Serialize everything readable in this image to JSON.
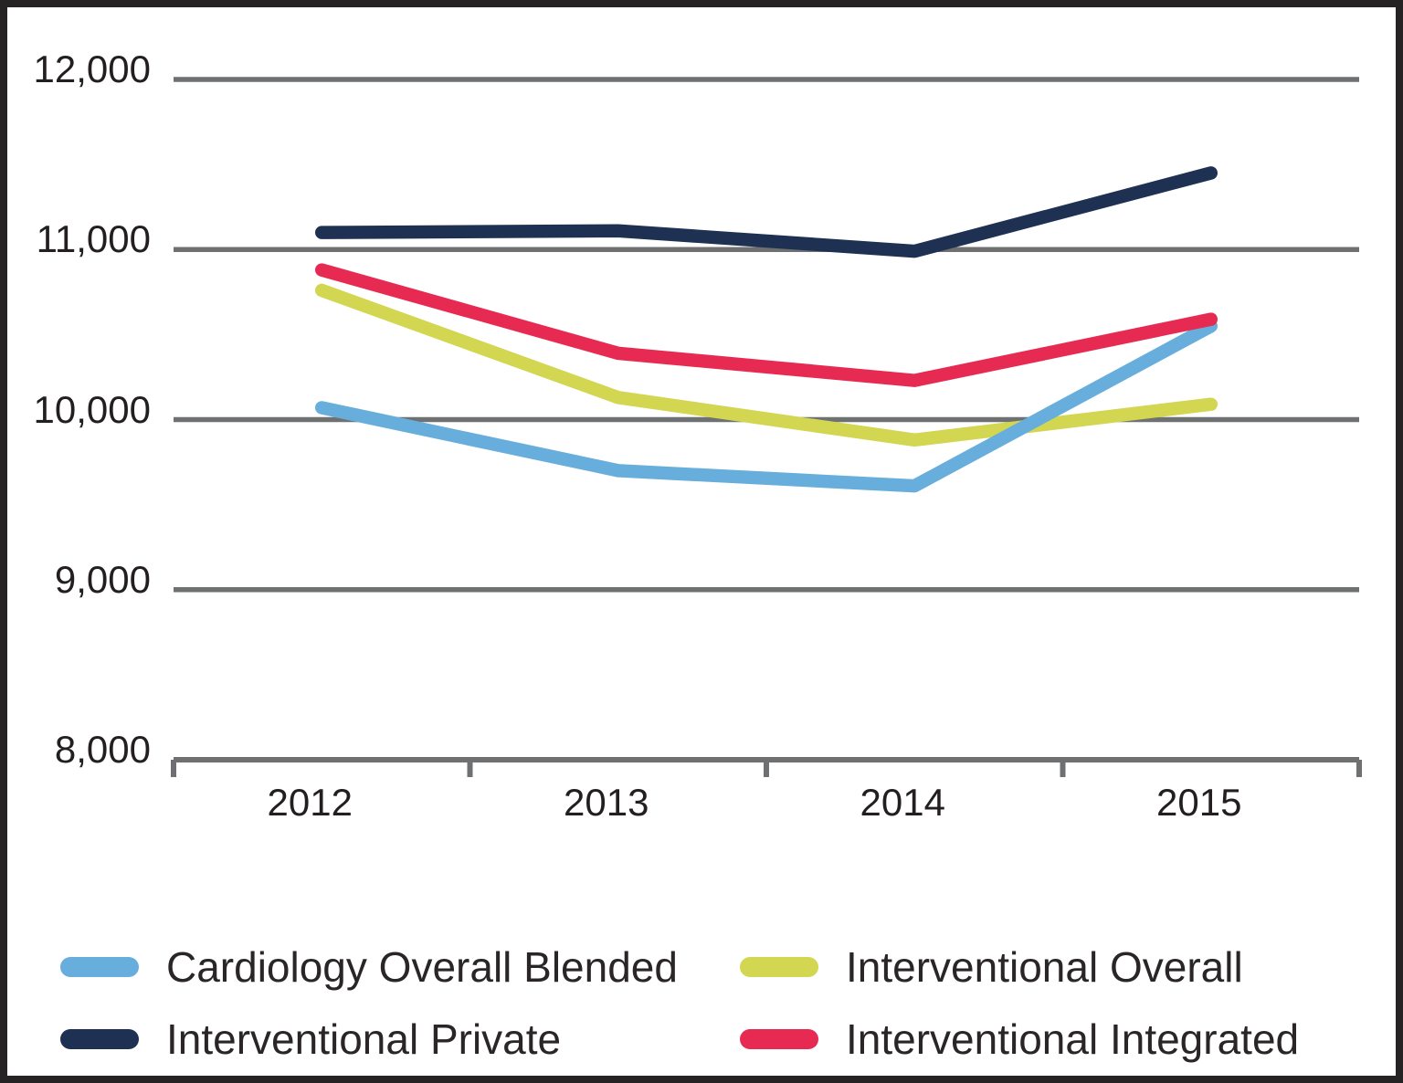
{
  "chart_data": {
    "type": "line",
    "title": "",
    "xlabel": "",
    "ylabel": "",
    "x": [
      2012,
      2013,
      2014,
      2015
    ],
    "x_tick_labels": [
      "2012",
      "2013",
      "2014",
      "2015"
    ],
    "y_tick_labels": [
      "12,000",
      "11,000",
      "10,000",
      "9,000",
      "8,000"
    ],
    "y_tick_values": [
      12000,
      11000,
      10000,
      9000,
      8000
    ],
    "ylim": [
      8000,
      12000
    ],
    "grid": "horizontal",
    "legend_position": "bottom",
    "colors": {
      "gridline": "#6f7072",
      "axis_text": "#231f20"
    },
    "series": [
      {
        "name": "Cardiology Overall Blended",
        "color": "#68aedc",
        "values": [
          10070,
          9700,
          9610,
          10550
        ]
      },
      {
        "name": "Interventional Overall",
        "color": "#d2d650",
        "values": [
          10760,
          10130,
          9880,
          10090
        ]
      },
      {
        "name": "Interventional Private",
        "color": "#1e3152",
        "values": [
          11100,
          11110,
          10990,
          11450
        ]
      },
      {
        "name": "Interventional Integrated",
        "color": "#e72a52",
        "values": [
          10880,
          10390,
          10230,
          10590
        ]
      }
    ]
  }
}
